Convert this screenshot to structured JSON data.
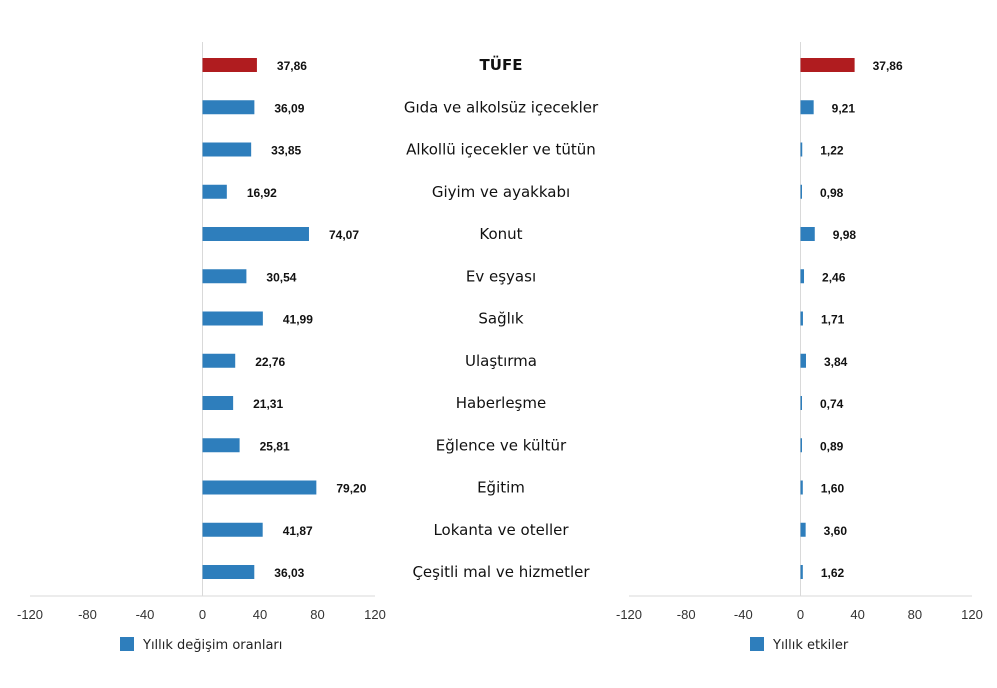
{
  "chart_data": [
    {
      "type": "bar",
      "orientation": "horizontal",
      "categories": [
        "TÜFE",
        "Gıda ve alkolsüz içecekler",
        "Alkollü içecekler ve tütün",
        "Giyim ve ayakkabı",
        "Konut",
        "Ev eşyası",
        "Sağlık",
        "Ulaştırma",
        "Haberleşme",
        "Eğlence ve kültür",
        "Eğitim",
        "Lokanta ve oteller",
        "Çeşitli mal ve hizmetler"
      ],
      "series": [
        {
          "name": "Yıllık değişim oranları",
          "values": [
            37.86,
            36.09,
            33.85,
            16.92,
            74.07,
            30.54,
            41.99,
            22.76,
            21.31,
            25.81,
            79.2,
            41.87,
            36.03
          ],
          "labels": [
            "37,86",
            "36,09",
            "33,85",
            "16,92",
            "74,07",
            "30,54",
            "41,99",
            "22,76",
            "21,31",
            "25,81",
            "79,20",
            "41,87",
            "36,03"
          ]
        }
      ],
      "xlim": [
        -120,
        120
      ],
      "ticks": [
        "-120",
        "-80",
        "-40",
        "0",
        "40",
        "80",
        "120"
      ],
      "tick_values": [
        -120,
        -80,
        -40,
        0,
        40,
        80,
        120
      ],
      "highlight_index": 0,
      "colors": {
        "bar": "#2e7ebc",
        "highlight": "#b01c1f"
      },
      "legend": "bottom",
      "grid": false
    },
    {
      "type": "bar",
      "orientation": "horizontal",
      "categories": [
        "TÜFE",
        "Gıda ve alkolsüz içecekler",
        "Alkollü içecekler ve tütün",
        "Giyim ve ayakkabı",
        "Konut",
        "Ev eşyası",
        "Sağlık",
        "Ulaştırma",
        "Haberleşme",
        "Eğlence ve kültür",
        "Eğitim",
        "Lokanta ve oteller",
        "Çeşitli mal ve hizmetler"
      ],
      "series": [
        {
          "name": "Yıllık etkiler",
          "values": [
            37.86,
            9.21,
            1.22,
            0.98,
            9.98,
            2.46,
            1.71,
            3.84,
            0.74,
            0.89,
            1.6,
            3.6,
            1.62
          ],
          "labels": [
            "37,86",
            "9,21",
            "1,22",
            "0,98",
            "9,98",
            "2,46",
            "1,71",
            "3,84",
            "0,74",
            "0,89",
            "1,60",
            "3,60",
            "1,62"
          ]
        }
      ],
      "xlim": [
        -120,
        120
      ],
      "ticks": [
        "-120",
        "-80",
        "-40",
        "0",
        "40",
        "80",
        "120"
      ],
      "tick_values": [
        -120,
        -80,
        -40,
        0,
        40,
        80,
        120
      ],
      "highlight_index": 0,
      "colors": {
        "bar": "#2e7ebc",
        "highlight": "#b01c1f"
      },
      "legend": "bottom",
      "grid": false
    }
  ]
}
